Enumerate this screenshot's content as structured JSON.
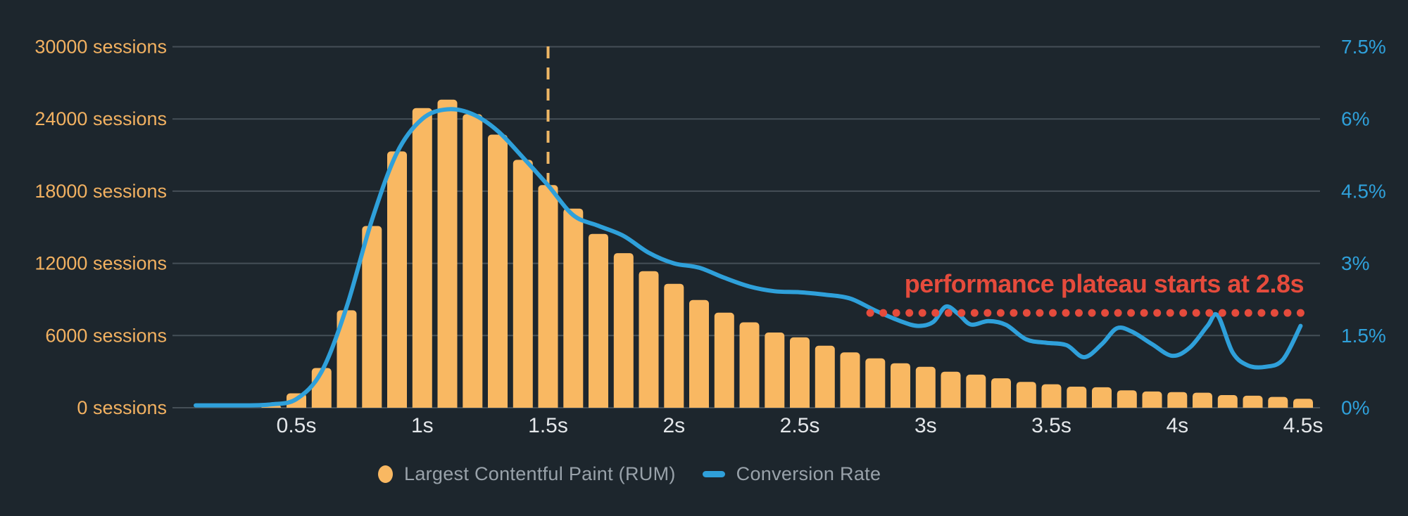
{
  "colors": {
    "background": "#1d262d",
    "grid": "#454f57",
    "bar": "#f9b862",
    "line": "#2fa0da",
    "left_label": "#f2b161",
    "right_label": "#2fa0da",
    "x_label": "#e4e7ea",
    "legend_text": "#99a2aa",
    "annotation": "#e54b3c",
    "marker_dash": "#efb765"
  },
  "chart_data": {
    "type": "bar",
    "subtype": "histogram with overlaid line (dual axis combo)",
    "title": "",
    "grid": true,
    "legend_position": "bottom",
    "x_axis": {
      "unit": "seconds",
      "tick_labels": [
        "0.5s",
        "1s",
        "1.5s",
        "2s",
        "2.5s",
        "3s",
        "3.5s",
        "4s",
        "4.5s"
      ],
      "tick_values": [
        0.5,
        1,
        1.5,
        2,
        2.5,
        3,
        3.5,
        4,
        4.5
      ],
      "range": [
        0.05,
        4.6
      ]
    },
    "left_axis": {
      "unit": "sessions",
      "tick_labels": [
        "0 sessions",
        "6000 sessions",
        "12000 sessions",
        "18000 sessions",
        "24000 sessions",
        "30000 sessions"
      ],
      "tick_values": [
        0,
        6000,
        12000,
        18000,
        24000,
        30000
      ],
      "range": [
        0,
        30000
      ]
    },
    "right_axis": {
      "unit": "percent",
      "tick_labels": [
        "0%",
        "1.5%",
        "3%",
        "4.5%",
        "6%",
        "7.5%"
      ],
      "tick_values": [
        0,
        1.5,
        3,
        4.5,
        6,
        7.5
      ],
      "range": [
        0,
        7.5
      ]
    },
    "series": [
      {
        "name": "Largest Contentful Paint (RUM)",
        "type": "bar",
        "axis": "left",
        "color": "#f9b862",
        "bin_width_s": 0.1,
        "x": [
          0.4,
          0.5,
          0.6,
          0.7,
          0.8,
          0.9,
          1.0,
          1.1,
          1.2,
          1.3,
          1.4,
          1.5,
          1.6,
          1.7,
          1.8,
          1.9,
          2.0,
          2.1,
          2.2,
          2.3,
          2.4,
          2.5,
          2.6,
          2.7,
          2.8,
          2.9,
          3.0,
          3.1,
          3.2,
          3.3,
          3.4,
          3.5,
          3.6,
          3.7,
          3.8,
          3.9,
          4.0,
          4.1,
          4.2,
          4.3,
          4.4,
          4.5
        ],
        "values": [
          250,
          1200,
          3300,
          8100,
          15100,
          21300,
          24900,
          25600,
          24400,
          22700,
          20600,
          18500,
          16550,
          14450,
          12850,
          11350,
          10300,
          8950,
          7900,
          7100,
          6250,
          5850,
          5150,
          4600,
          4100,
          3700,
          3400,
          3000,
          2750,
          2450,
          2150,
          1950,
          1750,
          1700,
          1450,
          1350,
          1300,
          1250,
          1050,
          1000,
          900,
          750
        ]
      },
      {
        "name": "Conversion Rate",
        "type": "line",
        "axis": "right",
        "color": "#2fa0da",
        "points": [
          [
            0.1,
            0.05
          ],
          [
            0.3,
            0.05
          ],
          [
            0.4,
            0.07
          ],
          [
            0.5,
            0.18
          ],
          [
            0.6,
            0.75
          ],
          [
            0.7,
            2.1
          ],
          [
            0.8,
            3.9
          ],
          [
            0.9,
            5.3
          ],
          [
            1.0,
            6.0
          ],
          [
            1.1,
            6.2
          ],
          [
            1.2,
            6.1
          ],
          [
            1.3,
            5.75
          ],
          [
            1.4,
            5.2
          ],
          [
            1.5,
            4.62
          ],
          [
            1.6,
            4.0
          ],
          [
            1.7,
            3.78
          ],
          [
            1.8,
            3.57
          ],
          [
            1.9,
            3.22
          ],
          [
            2.0,
            3.0
          ],
          [
            2.1,
            2.91
          ],
          [
            2.2,
            2.7
          ],
          [
            2.3,
            2.52
          ],
          [
            2.4,
            2.42
          ],
          [
            2.5,
            2.4
          ],
          [
            2.6,
            2.35
          ],
          [
            2.7,
            2.27
          ],
          [
            2.8,
            2.02
          ],
          [
            2.9,
            1.8
          ],
          [
            2.97,
            1.7
          ],
          [
            3.03,
            1.78
          ],
          [
            3.08,
            2.1
          ],
          [
            3.13,
            1.95
          ],
          [
            3.18,
            1.73
          ],
          [
            3.25,
            1.8
          ],
          [
            3.32,
            1.72
          ],
          [
            3.4,
            1.42
          ],
          [
            3.48,
            1.35
          ],
          [
            3.56,
            1.3
          ],
          [
            3.63,
            1.05
          ],
          [
            3.7,
            1.32
          ],
          [
            3.76,
            1.65
          ],
          [
            3.82,
            1.58
          ],
          [
            3.9,
            1.32
          ],
          [
            3.98,
            1.08
          ],
          [
            4.05,
            1.25
          ],
          [
            4.12,
            1.7
          ],
          [
            4.16,
            1.92
          ],
          [
            4.22,
            1.15
          ],
          [
            4.28,
            0.88
          ],
          [
            4.35,
            0.85
          ],
          [
            4.42,
            1.0
          ],
          [
            4.49,
            1.7
          ]
        ]
      }
    ],
    "annotations": {
      "plateau": {
        "text": "performance plateau starts at 2.8s",
        "color": "#e54b3c",
        "dotted_line": {
          "y_pct": 1.97,
          "t_start": 2.78,
          "t_end": 4.49,
          "dot_count": 34
        }
      },
      "lcp_marker": {
        "t": 1.5,
        "style": "dashed-vertical",
        "color": "#efb765"
      }
    }
  },
  "legend": {
    "items": [
      {
        "label": "Largest Contentful Paint (RUM)",
        "color": "#f9b862",
        "marker": "dot"
      },
      {
        "label": "Conversion Rate",
        "color": "#2fa0da",
        "marker": "dash"
      }
    ]
  }
}
